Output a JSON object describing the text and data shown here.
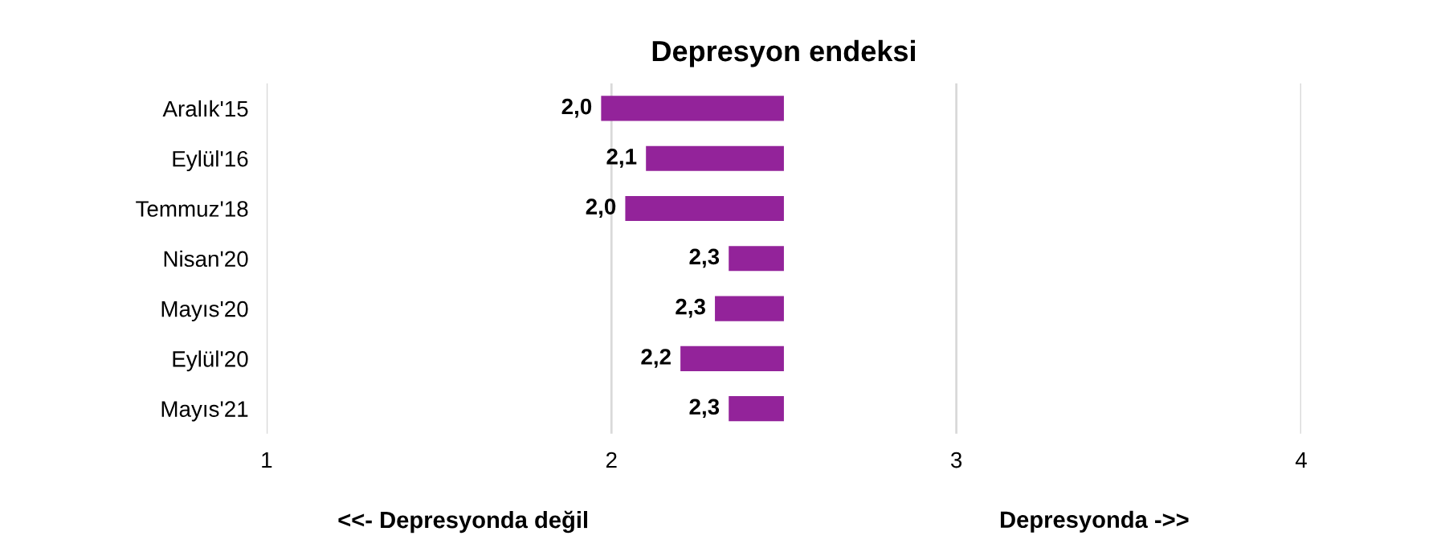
{
  "chart_data": {
    "type": "bar",
    "orientation": "horizontal",
    "title": "Depresyon endeksi",
    "categories": [
      "Aralık'15",
      "Eylül'16",
      "Temmuz'18",
      "Nisan'20",
      "Mayıs'20",
      "Eylül'20",
      "Mayıs'21"
    ],
    "base": [
      2.5,
      2.5,
      2.5,
      2.5,
      2.5,
      2.5,
      2.5
    ],
    "values": [
      -0.53,
      -0.4,
      -0.46,
      -0.16,
      -0.2,
      -0.3,
      -0.16
    ],
    "value_labels": [
      "2,0",
      "2,1",
      "2,0",
      "2,3",
      "2,3",
      "2,2",
      "2,3"
    ],
    "color": "#93239a",
    "xlim": [
      1,
      4
    ],
    "xticks": [
      1,
      2,
      3,
      4
    ],
    "grid": "x",
    "annotations": [
      "<<- Depresyonda değil",
      "Depresyonda ->>"
    ]
  }
}
